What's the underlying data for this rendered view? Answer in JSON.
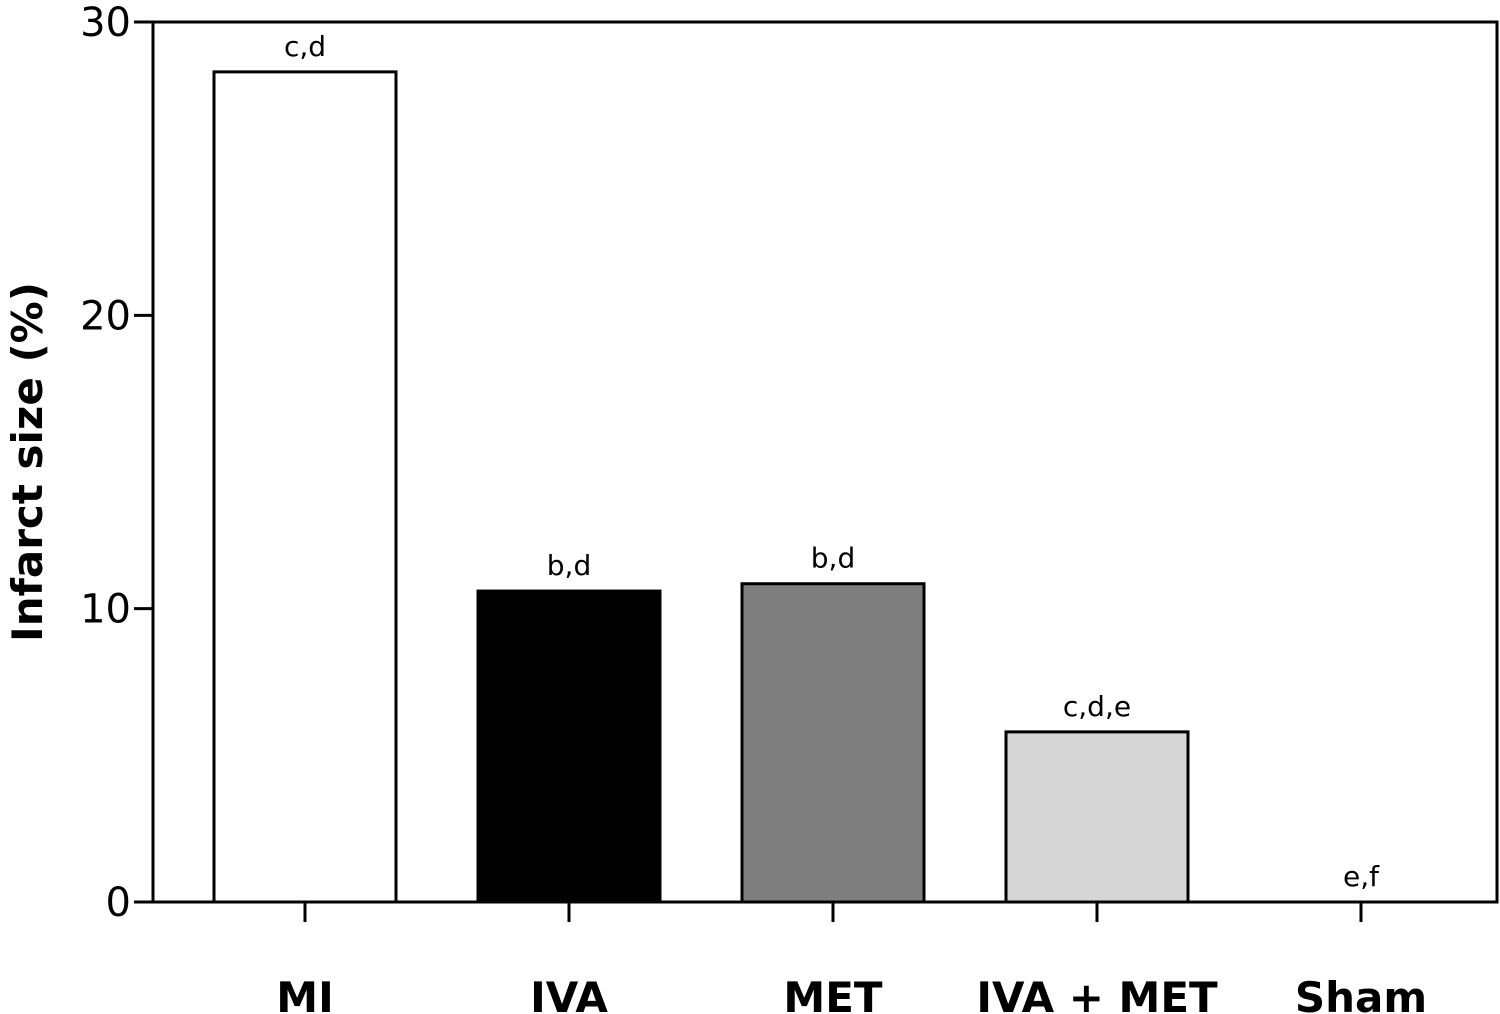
{
  "chart_data": {
    "type": "bar",
    "title": "",
    "xlabel": "",
    "ylabel": "Infarct size (%)",
    "ylim": [
      0,
      30
    ],
    "yticks": [
      "0",
      "10",
      "20",
      "30"
    ],
    "grid": false,
    "categories": [
      "MI",
      "IVA",
      "MET",
      "IVA + MET",
      "Sham"
    ],
    "values": [
      28.3,
      10.6,
      10.85,
      5.8,
      0
    ],
    "annotations": [
      "c,d",
      "b,d",
      "b,d",
      "c,d,e",
      "e,f"
    ],
    "bar_colors": [
      "#ffffff",
      "#000000",
      "#7f7f7f",
      "#d6d6d6",
      "#ffffff"
    ]
  }
}
